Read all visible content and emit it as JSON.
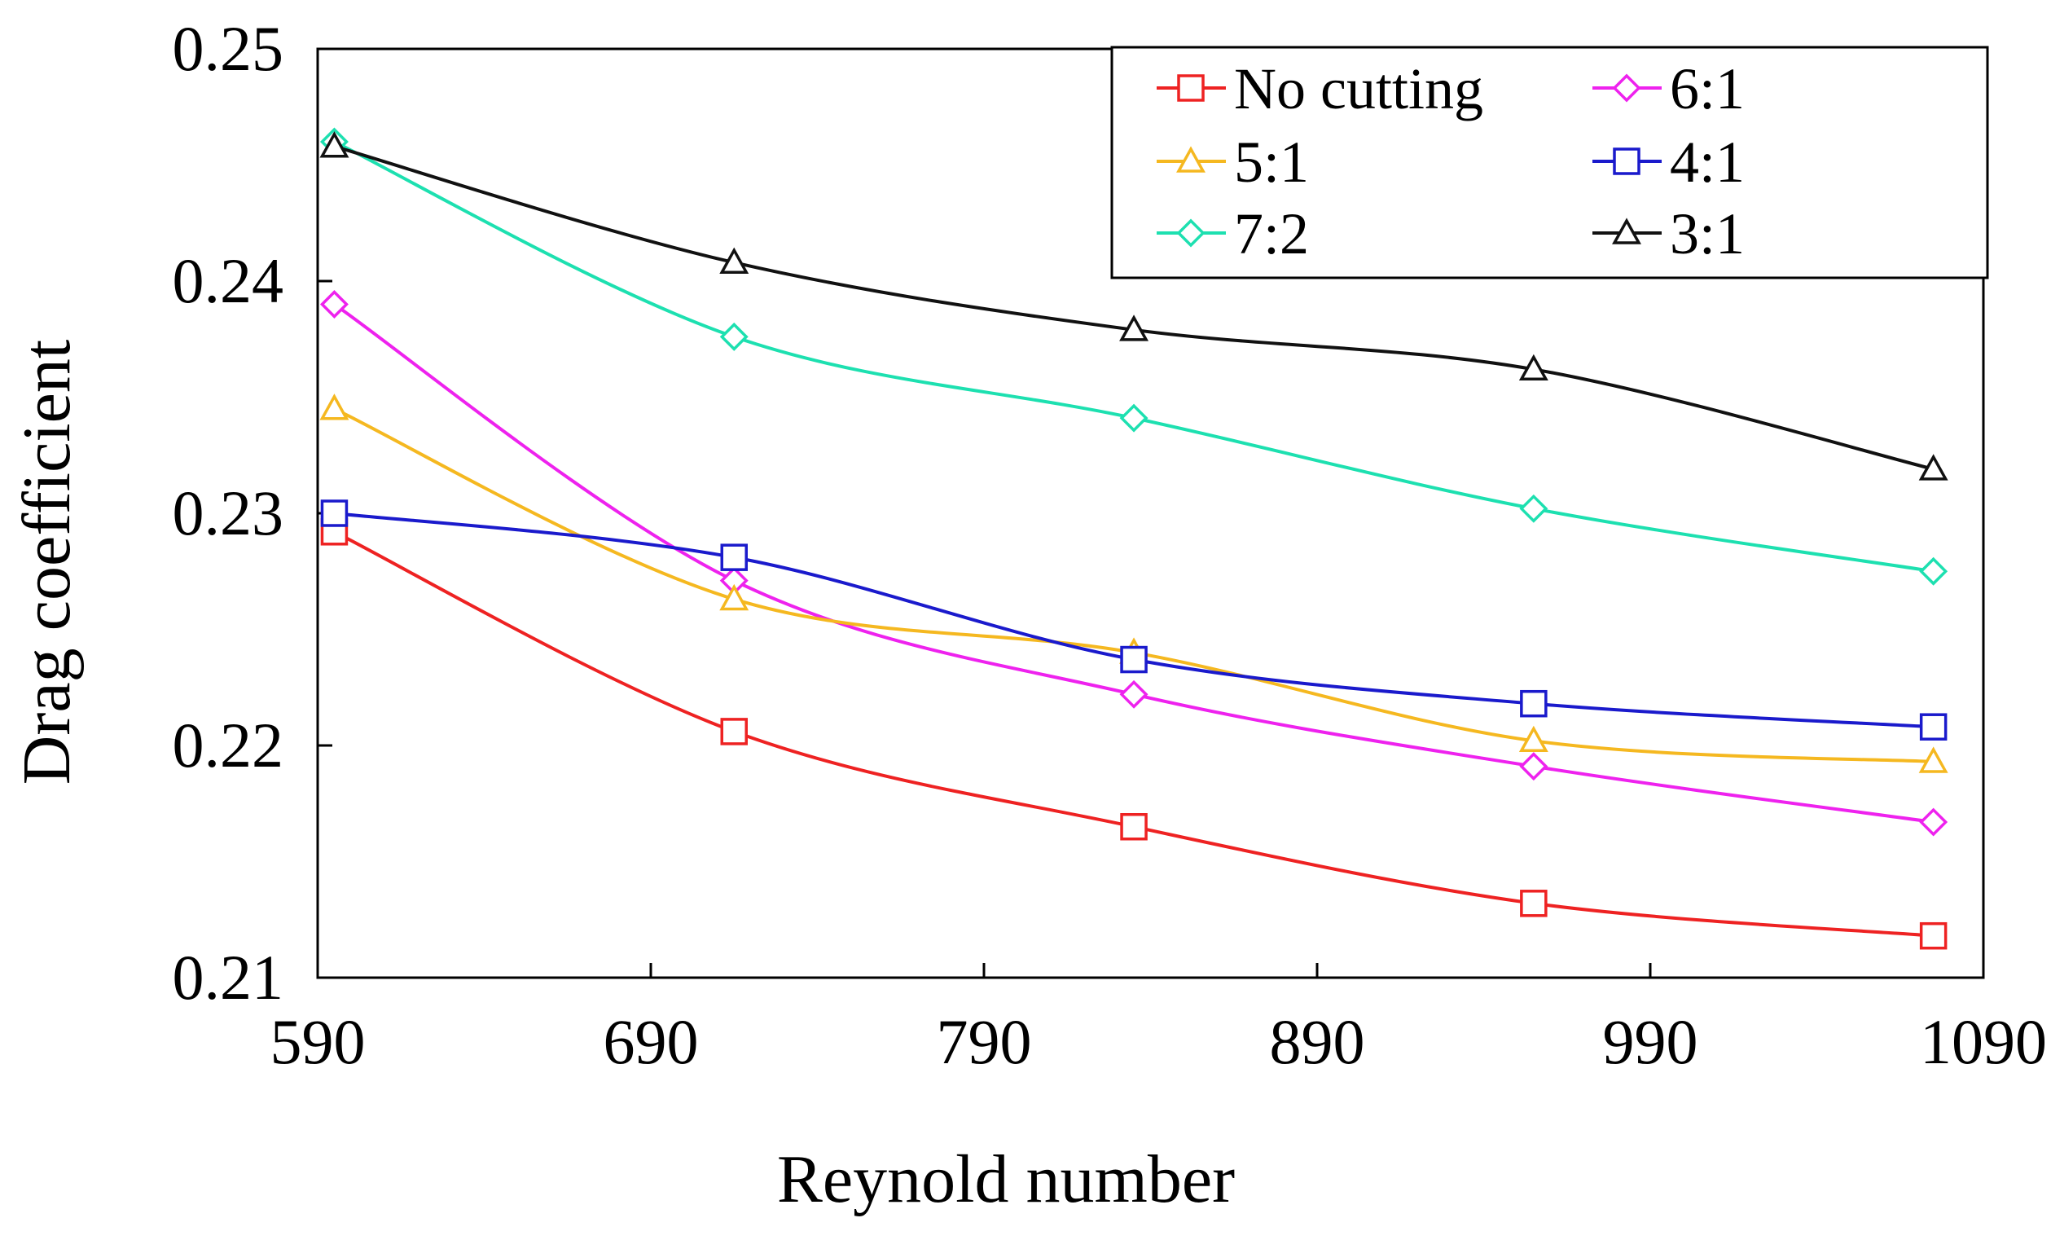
{
  "chart_data": {
    "type": "line",
    "title": "",
    "xlabel": "Reynold number",
    "ylabel": "Drag coefficient",
    "xlim": [
      590,
      1090
    ],
    "ylim": [
      0.21,
      0.25
    ],
    "xticks": [
      "590",
      "690",
      "790",
      "890",
      "990",
      "1090"
    ],
    "yticks": [
      "0.21",
      "0.22",
      "0.23",
      "0.24",
      "0.25"
    ],
    "grid": false,
    "legend_position": "top-right",
    "x": [
      595,
      715,
      835,
      955,
      1075
    ],
    "series": [
      {
        "name": "No cutting",
        "color": "#ee2222",
        "marker": "square",
        "values": [
          0.2292,
          0.2206,
          0.2165,
          0.2132,
          0.2118
        ]
      },
      {
        "name": "6:1",
        "color": "#ee22ee",
        "marker": "diamond",
        "values": [
          0.239,
          0.2271,
          0.2222,
          0.2191,
          0.2167
        ]
      },
      {
        "name": "5:1",
        "color": "#f5b820",
        "marker": "triangle",
        "values": [
          0.2345,
          0.2263,
          0.224,
          0.2202,
          0.2193
        ]
      },
      {
        "name": "4:1",
        "color": "#1a1acc",
        "marker": "square",
        "values": [
          0.23,
          0.2281,
          0.2237,
          0.2218,
          0.2208
        ]
      },
      {
        "name": "7:2",
        "color": "#1de0b0",
        "marker": "diamond",
        "values": [
          0.246,
          0.2376,
          0.2341,
          0.2302,
          0.2275
        ]
      },
      {
        "name": "3:1",
        "color": "#111111",
        "marker": "triangle",
        "values": [
          0.2458,
          0.2408,
          0.2379,
          0.2362,
          0.2319
        ]
      }
    ]
  }
}
